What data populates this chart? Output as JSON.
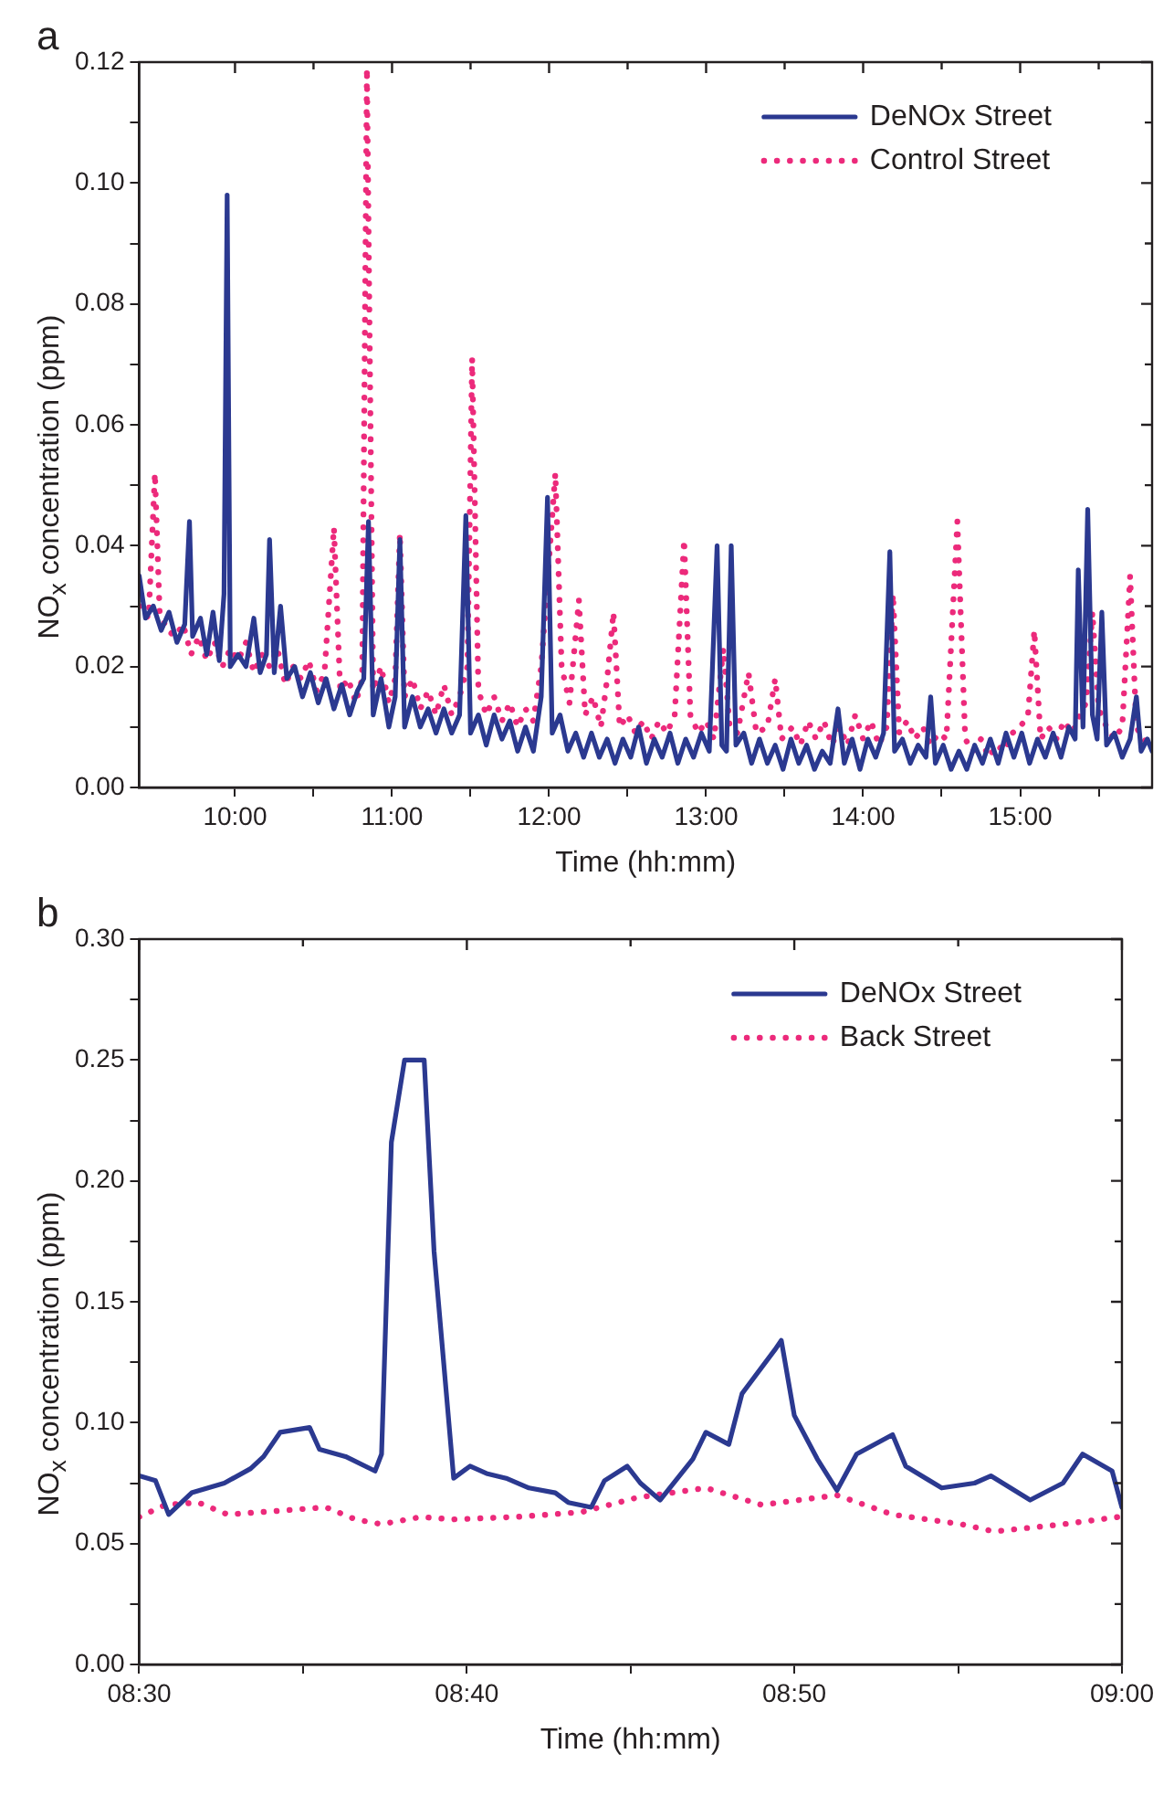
{
  "chart_data": [
    {
      "type": "line",
      "title": "a",
      "xlabel": "Time (hh:mm)",
      "ylabel": "NO$_{x}$ concentration (ppm)",
      "legend": "top right",
      "xlim": [
        9.39,
        15.84
      ],
      "xticks": [
        {
          "value": 10,
          "label": "10:00"
        },
        {
          "value": 10.5,
          "label": null
        },
        {
          "value": 11,
          "label": "11:00"
        },
        {
          "value": 11.5,
          "label": null
        },
        {
          "value": 12,
          "label": "12:00"
        },
        {
          "value": 12.5,
          "label": null
        },
        {
          "value": 13,
          "label": "13:00"
        },
        {
          "value": 13.5,
          "label": null
        },
        {
          "value": 14,
          "label": "14:00"
        },
        {
          "value": 14.5,
          "label": null
        },
        {
          "value": 15,
          "label": "15:00"
        },
        {
          "value": 15.5,
          "label": null
        }
      ],
      "ylim": [
        0,
        0.12
      ],
      "yticks": [
        {
          "value": 0,
          "label": "0.00"
        },
        {
          "value": 0.01,
          "label": null
        },
        {
          "value": 0.02,
          "label": "0.02"
        },
        {
          "value": 0.03,
          "label": null
        },
        {
          "value": 0.04,
          "label": "0.04"
        },
        {
          "value": 0.05,
          "label": null
        },
        {
          "value": 0.06,
          "label": "0.06"
        },
        {
          "value": 0.07,
          "label": null
        },
        {
          "value": 0.08,
          "label": "0.08"
        },
        {
          "value": 0.09,
          "label": null
        },
        {
          "value": 0.1,
          "label": "0.10"
        },
        {
          "value": 0.11,
          "label": null
        },
        {
          "value": 0.12,
          "label": "0.12"
        }
      ],
      "series": [
        {
          "name": "DeNOx Street",
          "color": "#2b3990",
          "line_style": "solid",
          "x": [
            9.39,
            9.43,
            9.48,
            9.53,
            9.58,
            9.63,
            9.68,
            9.71,
            9.73,
            9.78,
            9.82,
            9.86,
            9.9,
            9.93,
            9.95,
            9.97,
            10.02,
            10.07,
            10.12,
            10.16,
            10.2,
            10.22,
            10.25,
            10.29,
            10.33,
            10.38,
            10.43,
            10.48,
            10.53,
            10.58,
            10.63,
            10.68,
            10.73,
            10.78,
            10.82,
            10.85,
            10.88,
            10.93,
            10.98,
            11.02,
            11.05,
            11.08,
            11.13,
            11.18,
            11.23,
            11.28,
            11.33,
            11.38,
            11.43,
            11.47,
            11.5,
            11.55,
            11.6,
            11.65,
            11.7,
            11.75,
            11.8,
            11.85,
            11.9,
            11.95,
            11.99,
            12.02,
            12.07,
            12.12,
            12.17,
            12.22,
            12.27,
            12.32,
            12.37,
            12.42,
            12.47,
            12.52,
            12.57,
            12.62,
            12.67,
            12.72,
            12.77,
            12.82,
            12.87,
            12.92,
            12.97,
            13.02,
            13.07,
            13.1,
            13.13,
            13.16,
            13.19,
            13.24,
            13.29,
            13.34,
            13.39,
            13.44,
            13.49,
            13.54,
            13.59,
            13.64,
            13.69,
            13.74,
            13.79,
            13.84,
            13.88,
            13.93,
            13.98,
            14.03,
            14.08,
            14.13,
            14.17,
            14.2,
            14.25,
            14.3,
            14.35,
            14.4,
            14.43,
            14.46,
            14.51,
            14.56,
            14.61,
            14.66,
            14.71,
            14.76,
            14.81,
            14.86,
            14.91,
            14.96,
            15.01,
            15.06,
            15.11,
            15.16,
            15.21,
            15.26,
            15.31,
            15.35,
            15.37,
            15.4,
            15.43,
            15.46,
            15.49,
            15.52,
            15.55,
            15.6,
            15.65,
            15.7,
            15.74,
            15.77,
            15.81,
            15.84
          ],
          "values": [
            0.035,
            0.028,
            0.03,
            0.026,
            0.029,
            0.024,
            0.027,
            0.044,
            0.025,
            0.028,
            0.022,
            0.029,
            0.021,
            0.032,
            0.098,
            0.02,
            0.022,
            0.02,
            0.028,
            0.019,
            0.022,
            0.041,
            0.019,
            0.03,
            0.018,
            0.02,
            0.015,
            0.019,
            0.014,
            0.018,
            0.013,
            0.017,
            0.012,
            0.016,
            0.018,
            0.044,
            0.012,
            0.018,
            0.01,
            0.015,
            0.041,
            0.01,
            0.015,
            0.01,
            0.013,
            0.009,
            0.013,
            0.009,
            0.012,
            0.045,
            0.009,
            0.012,
            0.007,
            0.012,
            0.008,
            0.011,
            0.006,
            0.01,
            0.006,
            0.015,
            0.048,
            0.009,
            0.012,
            0.006,
            0.009,
            0.005,
            0.009,
            0.005,
            0.008,
            0.004,
            0.008,
            0.005,
            0.01,
            0.004,
            0.008,
            0.005,
            0.009,
            0.004,
            0.008,
            0.005,
            0.009,
            0.006,
            0.04,
            0.007,
            0.006,
            0.04,
            0.007,
            0.009,
            0.004,
            0.008,
            0.004,
            0.007,
            0.003,
            0.008,
            0.004,
            0.007,
            0.003,
            0.006,
            0.004,
            0.013,
            0.004,
            0.008,
            0.003,
            0.008,
            0.005,
            0.009,
            0.039,
            0.006,
            0.008,
            0.004,
            0.007,
            0.005,
            0.015,
            0.004,
            0.007,
            0.003,
            0.006,
            0.003,
            0.007,
            0.004,
            0.008,
            0.004,
            0.009,
            0.005,
            0.009,
            0.004,
            0.008,
            0.005,
            0.009,
            0.005,
            0.01,
            0.008,
            0.036,
            0.01,
            0.046,
            0.012,
            0.008,
            0.029,
            0.007,
            0.009,
            0.005,
            0.008,
            0.015,
            0.006,
            0.008,
            0.006
          ]
        },
        {
          "name": "Control Street",
          "color": "#ec2a7b",
          "line_style": "dotted",
          "x": [
            9.39,
            9.45,
            9.49,
            9.52,
            9.57,
            9.62,
            9.67,
            9.72,
            9.77,
            9.82,
            9.87,
            9.92,
            9.97,
            10.02,
            10.07,
            10.12,
            10.17,
            10.22,
            10.27,
            10.32,
            10.37,
            10.42,
            10.47,
            10.52,
            10.57,
            10.63,
            10.67,
            10.72,
            10.77,
            10.81,
            10.84,
            10.88,
            10.93,
            10.98,
            11.02,
            11.05,
            11.08,
            11.13,
            11.18,
            11.23,
            11.28,
            11.33,
            11.38,
            11.43,
            11.48,
            11.51,
            11.55,
            11.6,
            11.65,
            11.7,
            11.75,
            11.8,
            11.85,
            11.9,
            11.95,
            12.04,
            12.08,
            12.13,
            12.19,
            12.23,
            12.28,
            12.33,
            12.37,
            12.41,
            12.45,
            12.5,
            12.55,
            12.6,
            12.65,
            12.7,
            12.75,
            12.8,
            12.86,
            12.9,
            12.95,
            13.0,
            13.05,
            13.11,
            13.15,
            13.2,
            13.27,
            13.32,
            13.39,
            13.44,
            13.48,
            13.55,
            13.6,
            13.65,
            13.7,
            13.75,
            13.8,
            13.85,
            13.9,
            13.95,
            14.0,
            14.05,
            14.1,
            14.15,
            14.19,
            14.23,
            14.28,
            14.33,
            14.38,
            14.43,
            14.48,
            14.53,
            14.6,
            14.65,
            14.7,
            14.75,
            14.8,
            14.85,
            14.9,
            14.95,
            15.0,
            15.05,
            15.09,
            15.13,
            15.18,
            15.23,
            15.28,
            15.33,
            15.38,
            15.42,
            15.46,
            15.5,
            15.55,
            15.6,
            15.65,
            15.7,
            15.74,
            15.78,
            15.84
          ],
          "values": [
            0.03,
            0.028,
            0.052,
            0.029,
            0.026,
            0.025,
            0.027,
            0.022,
            0.025,
            0.021,
            0.024,
            0.02,
            0.023,
            0.021,
            0.024,
            0.019,
            0.022,
            0.02,
            0.023,
            0.017,
            0.02,
            0.018,
            0.021,
            0.016,
            0.019,
            0.043,
            0.016,
            0.018,
            0.014,
            0.018,
            0.119,
            0.016,
            0.02,
            0.014,
            0.018,
            0.042,
            0.015,
            0.018,
            0.013,
            0.016,
            0.012,
            0.017,
            0.012,
            0.015,
            0.02,
            0.071,
            0.016,
            0.012,
            0.015,
            0.011,
            0.014,
            0.01,
            0.013,
            0.011,
            0.02,
            0.052,
            0.02,
            0.014,
            0.031,
            0.012,
            0.015,
            0.01,
            0.018,
            0.029,
            0.01,
            0.012,
            0.009,
            0.011,
            0.008,
            0.011,
            0.009,
            0.012,
            0.041,
            0.012,
            0.009,
            0.011,
            0.008,
            0.023,
            0.01,
            0.009,
            0.019,
            0.009,
            0.01,
            0.018,
            0.008,
            0.01,
            0.007,
            0.011,
            0.008,
            0.011,
            0.007,
            0.01,
            0.007,
            0.012,
            0.008,
            0.011,
            0.007,
            0.01,
            0.032,
            0.009,
            0.011,
            0.008,
            0.01,
            0.007,
            0.009,
            0.008,
            0.044,
            0.008,
            0.006,
            0.008,
            0.005,
            0.007,
            0.006,
            0.009,
            0.01,
            0.012,
            0.026,
            0.008,
            0.01,
            0.008,
            0.011,
            0.009,
            0.012,
            0.014,
            0.029,
            0.013,
            0.01,
            0.008,
            0.01,
            0.035,
            0.01,
            0.008,
            0.007
          ]
        }
      ]
    },
    {
      "type": "line",
      "title": "b",
      "xlabel": "Time (hh:mm)",
      "ylabel": "NO$_{x}$ concentration (ppm)",
      "legend": "top right",
      "xlim": [
        8.5,
        9.0
      ],
      "xticks": [
        {
          "value": 8.5,
          "label": "08:30"
        },
        {
          "value": 8.5833,
          "label": null
        },
        {
          "value": 8.6667,
          "label": "08:40"
        },
        {
          "value": 8.75,
          "label": null
        },
        {
          "value": 8.8333,
          "label": "08:50"
        },
        {
          "value": 8.9167,
          "label": null
        },
        {
          "value": 9.0,
          "label": "09:00"
        }
      ],
      "ylim": [
        0,
        0.3
      ],
      "yticks": [
        {
          "value": 0,
          "label": "0.00"
        },
        {
          "value": 0.025,
          "label": null
        },
        {
          "value": 0.05,
          "label": "0.05"
        },
        {
          "value": 0.075,
          "label": null
        },
        {
          "value": 0.1,
          "label": "0.10"
        },
        {
          "value": 0.125,
          "label": null
        },
        {
          "value": 0.15,
          "label": "0.15"
        },
        {
          "value": 0.175,
          "label": null
        },
        {
          "value": 0.2,
          "label": "0.20"
        },
        {
          "value": 0.225,
          "label": null
        },
        {
          "value": 0.25,
          "label": "0.25"
        },
        {
          "value": 0.275,
          "label": null
        },
        {
          "value": 0.3,
          "label": "0.30"
        }
      ],
      "series": [
        {
          "name": "DeNOx Street",
          "color": "#2b3990",
          "line_style": "solid",
          "x": [
            8.5,
            8.5083,
            8.515,
            8.5267,
            8.5433,
            8.5567,
            8.5633,
            8.5717,
            8.5867,
            8.5917,
            8.605,
            8.62,
            8.6233,
            8.6283,
            8.635,
            8.645,
            8.65,
            8.66,
            8.6683,
            8.6767,
            8.6867,
            8.6983,
            8.7117,
            8.7183,
            8.73,
            8.7367,
            8.7483,
            8.755,
            8.765,
            8.7817,
            8.7883,
            8.8,
            8.8067,
            8.8233,
            8.8267,
            8.8333,
            8.845,
            8.855,
            8.865,
            8.8833,
            8.89,
            8.9083,
            8.925,
            8.9333,
            8.9533,
            8.97,
            8.98,
            8.995,
            9.0
          ],
          "values": [
            0.078,
            0.076,
            0.062,
            0.071,
            0.075,
            0.081,
            0.086,
            0.096,
            0.098,
            0.089,
            0.086,
            0.08,
            0.087,
            0.216,
            0.25,
            0.25,
            0.171,
            0.077,
            0.082,
            0.079,
            0.077,
            0.073,
            0.071,
            0.067,
            0.065,
            0.076,
            0.082,
            0.075,
            0.068,
            0.085,
            0.096,
            0.091,
            0.112,
            0.13,
            0.134,
            0.103,
            0.085,
            0.072,
            0.087,
            0.095,
            0.082,
            0.073,
            0.075,
            0.078,
            0.068,
            0.075,
            0.087,
            0.08,
            0.065
          ]
        },
        {
          "name": "Back Street",
          "color": "#ec2a7b",
          "line_style": "dotted",
          "x": [
            8.5,
            8.5133,
            8.53,
            8.545,
            8.5617,
            8.595,
            8.61,
            8.6233,
            8.6433,
            8.66,
            8.6917,
            8.725,
            8.7533,
            8.7883,
            8.8167,
            8.855,
            8.8833,
            8.9183,
            8.935,
            8.97,
            8.9983
          ],
          "values": [
            0.061,
            0.066,
            0.067,
            0.062,
            0.063,
            0.065,
            0.06,
            0.058,
            0.061,
            0.06,
            0.061,
            0.063,
            0.069,
            0.073,
            0.066,
            0.07,
            0.062,
            0.058,
            0.055,
            0.058,
            0.061
          ]
        }
      ]
    }
  ]
}
